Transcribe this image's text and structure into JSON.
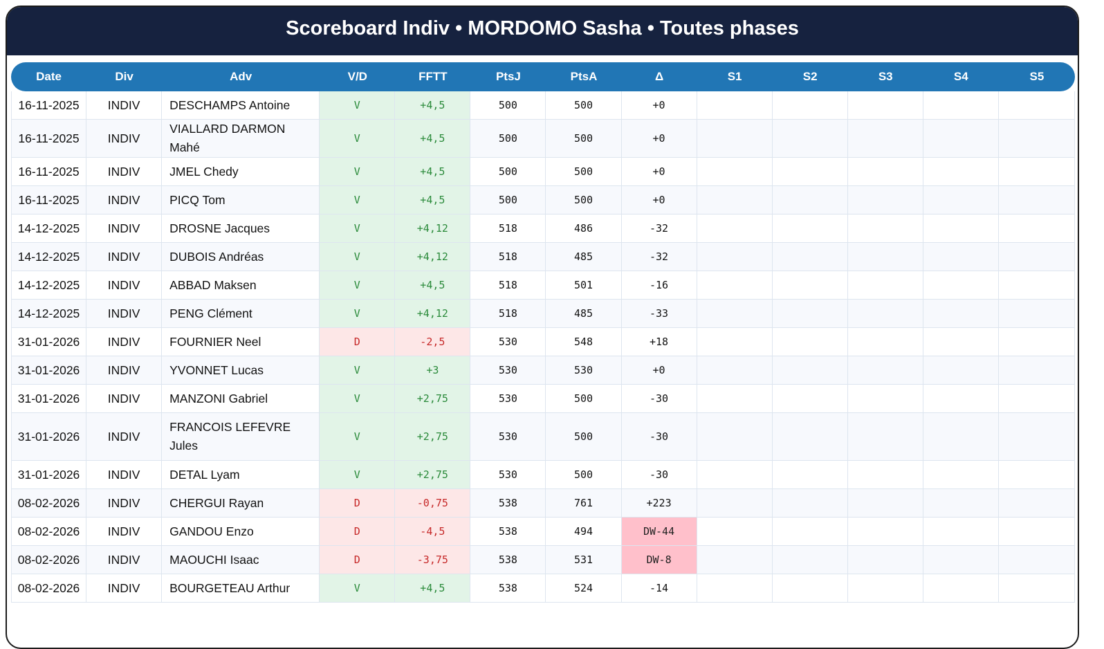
{
  "header": {
    "title": "Scoreboard Indiv • MORDOMO Sasha • Toutes phases"
  },
  "colors": {
    "title_bg": "#16223f",
    "header_bg": "#2176b5",
    "win_bg": "#e2f4e7",
    "win_text": "#2a8a3a",
    "loss_bg": "#fde7e7",
    "loss_text": "#c62828",
    "dw_bg": "#ffc0cb"
  },
  "table": {
    "columns": [
      "Date",
      "Div",
      "Adv",
      "V/D",
      "FFTT",
      "PtsJ",
      "PtsA",
      "Δ",
      "S1",
      "S2",
      "S3",
      "S4",
      "S5"
    ],
    "rows": [
      {
        "date": "16-11-2025",
        "div": "INDIV",
        "adv": "DESCHAMPS Antoine",
        "vd": "V",
        "fftt": "+4,5",
        "ptsj": "500",
        "ptsa": "500",
        "delta": "+0",
        "s1": "",
        "s2": "",
        "s3": "",
        "s4": "",
        "s5": ""
      },
      {
        "date": "16-11-2025",
        "div": "INDIV",
        "adv": "VIALLARD DARMON Mahé",
        "vd": "V",
        "fftt": "+4,5",
        "ptsj": "500",
        "ptsa": "500",
        "delta": "+0",
        "s1": "",
        "s2": "",
        "s3": "",
        "s4": "",
        "s5": ""
      },
      {
        "date": "16-11-2025",
        "div": "INDIV",
        "adv": "JMEL Chedy",
        "vd": "V",
        "fftt": "+4,5",
        "ptsj": "500",
        "ptsa": "500",
        "delta": "+0",
        "s1": "",
        "s2": "",
        "s3": "",
        "s4": "",
        "s5": ""
      },
      {
        "date": "16-11-2025",
        "div": "INDIV",
        "adv": "PICQ Tom",
        "vd": "V",
        "fftt": "+4,5",
        "ptsj": "500",
        "ptsa": "500",
        "delta": "+0",
        "s1": "",
        "s2": "",
        "s3": "",
        "s4": "",
        "s5": ""
      },
      {
        "date": "14-12-2025",
        "div": "INDIV",
        "adv": "DROSNE Jacques",
        "vd": "V",
        "fftt": "+4,12",
        "ptsj": "518",
        "ptsa": "486",
        "delta": "-32",
        "s1": "",
        "s2": "",
        "s3": "",
        "s4": "",
        "s5": ""
      },
      {
        "date": "14-12-2025",
        "div": "INDIV",
        "adv": "DUBOIS Andréas",
        "vd": "V",
        "fftt": "+4,12",
        "ptsj": "518",
        "ptsa": "485",
        "delta": "-32",
        "s1": "",
        "s2": "",
        "s3": "",
        "s4": "",
        "s5": ""
      },
      {
        "date": "14-12-2025",
        "div": "INDIV",
        "adv": "ABBAD Maksen",
        "vd": "V",
        "fftt": "+4,5",
        "ptsj": "518",
        "ptsa": "501",
        "delta": "-16",
        "s1": "",
        "s2": "",
        "s3": "",
        "s4": "",
        "s5": ""
      },
      {
        "date": "14-12-2025",
        "div": "INDIV",
        "adv": "PENG Clément",
        "vd": "V",
        "fftt": "+4,12",
        "ptsj": "518",
        "ptsa": "485",
        "delta": "-33",
        "s1": "",
        "s2": "",
        "s3": "",
        "s4": "",
        "s5": ""
      },
      {
        "date": "31-01-2026",
        "div": "INDIV",
        "adv": "FOURNIER Neel",
        "vd": "D",
        "fftt": "-2,5",
        "ptsj": "530",
        "ptsa": "548",
        "delta": "+18",
        "s1": "",
        "s2": "",
        "s3": "",
        "s4": "",
        "s5": ""
      },
      {
        "date": "31-01-2026",
        "div": "INDIV",
        "adv": "YVONNET Lucas",
        "vd": "V",
        "fftt": "+3",
        "ptsj": "530",
        "ptsa": "530",
        "delta": "+0",
        "s1": "",
        "s2": "",
        "s3": "",
        "s4": "",
        "s5": ""
      },
      {
        "date": "31-01-2026",
        "div": "INDIV",
        "adv": "MANZONI Gabriel",
        "vd": "V",
        "fftt": "+2,75",
        "ptsj": "530",
        "ptsa": "500",
        "delta": "-30",
        "s1": "",
        "s2": "",
        "s3": "",
        "s4": "",
        "s5": ""
      },
      {
        "date": "31-01-2026",
        "div": "INDIV",
        "adv": "FRANCOIS LEFEVRE Jules",
        "vd": "V",
        "fftt": "+2,75",
        "ptsj": "530",
        "ptsa": "500",
        "delta": "-30",
        "s1": "",
        "s2": "",
        "s3": "",
        "s4": "",
        "s5": ""
      },
      {
        "date": "31-01-2026",
        "div": "INDIV",
        "adv": "DETAL Lyam",
        "vd": "V",
        "fftt": "+2,75",
        "ptsj": "530",
        "ptsa": "500",
        "delta": "-30",
        "s1": "",
        "s2": "",
        "s3": "",
        "s4": "",
        "s5": ""
      },
      {
        "date": "08-02-2026",
        "div": "INDIV",
        "adv": "CHERGUI Rayan",
        "vd": "D",
        "fftt": "-0,75",
        "ptsj": "538",
        "ptsa": "761",
        "delta": "+223",
        "s1": "",
        "s2": "",
        "s3": "",
        "s4": "",
        "s5": ""
      },
      {
        "date": "08-02-2026",
        "div": "INDIV",
        "adv": "GANDOU Enzo",
        "vd": "D",
        "fftt": "-4,5",
        "ptsj": "538",
        "ptsa": "494",
        "delta": "DW-44",
        "s1": "",
        "s2": "",
        "s3": "",
        "s4": "",
        "s5": ""
      },
      {
        "date": "08-02-2026",
        "div": "INDIV",
        "adv": "MAOUCHI Isaac",
        "vd": "D",
        "fftt": "-3,75",
        "ptsj": "538",
        "ptsa": "531",
        "delta": "DW-8",
        "s1": "",
        "s2": "",
        "s3": "",
        "s4": "",
        "s5": ""
      },
      {
        "date": "08-02-2026",
        "div": "INDIV",
        "adv": "BOURGETEAU Arthur",
        "vd": "V",
        "fftt": "+4,5",
        "ptsj": "538",
        "ptsa": "524",
        "delta": "-14",
        "s1": "",
        "s2": "",
        "s3": "",
        "s4": "",
        "s5": ""
      }
    ]
  }
}
